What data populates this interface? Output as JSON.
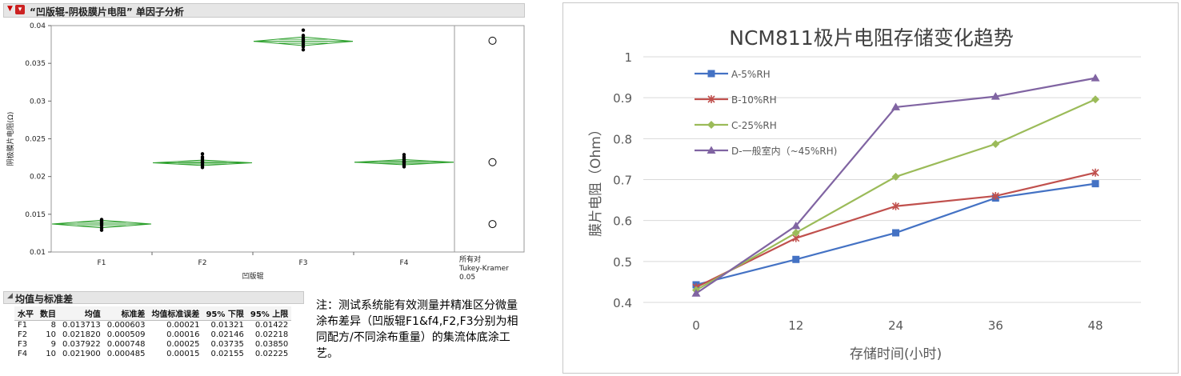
{
  "left_header": {
    "title": "“凹版辊-阴极膜片电阻” 单因子分析"
  },
  "chart_data": [
    {
      "type": "scatter",
      "subtype": "oneway-means-diamonds",
      "title": "“凹版辊-阴极膜片电阻” 单因子分析",
      "xlabel": "凹版辊",
      "ylabel": "阴极膜片电阻(Ω)",
      "ylim": [
        0.01,
        0.04
      ],
      "yticks": [
        "0.01",
        "0.015",
        "0.02",
        "0.025",
        "0.03",
        "0.035",
        "0.04"
      ],
      "categories": [
        "F1",
        "F2",
        "F3",
        "F4"
      ],
      "means": [
        0.013713,
        0.02182,
        0.037922,
        0.0219
      ],
      "ci_lower": [
        0.01321,
        0.02146,
        0.03735,
        0.02155
      ],
      "ci_upper": [
        0.01422,
        0.02218,
        0.0385,
        0.02225
      ],
      "points": [
        [
          0.0129,
          0.0132,
          0.0135,
          0.0137,
          0.0138,
          0.014,
          0.0141,
          0.0143
        ],
        [
          0.0212,
          0.0214,
          0.0216,
          0.0218,
          0.0219,
          0.022,
          0.0222,
          0.0224,
          0.0226,
          0.023
        ],
        [
          0.0368,
          0.0372,
          0.0375,
          0.0378,
          0.038,
          0.0382,
          0.0384,
          0.0387,
          0.0394
        ],
        [
          0.0213,
          0.0215,
          0.0216,
          0.0218,
          0.0219,
          0.022,
          0.0222,
          0.0224,
          0.0226,
          0.0229
        ]
      ],
      "comparison_label": "所有对\nTukey-Kramer\n0.05",
      "comparison_circle_means": [
        0.038,
        0.0219,
        0.0137
      ]
    },
    {
      "type": "line",
      "title": "NCM811极片电阻存储变化趋势",
      "xlabel": "存储时间(小时)",
      "ylabel": "膜片电阻（Ohm）",
      "x": [
        0,
        12,
        24,
        36,
        48
      ],
      "ylim": [
        0.4,
        1.0
      ],
      "yticks": [
        "0.4",
        "0.5",
        "0.6",
        "0.7",
        "0.8",
        "0.9",
        "1"
      ],
      "series": [
        {
          "name": "A-5%RH",
          "values": [
            0.443,
            0.505,
            0.57,
            0.655,
            0.69
          ],
          "color": "#4472c4",
          "marker": "square"
        },
        {
          "name": "B-10%RH",
          "values": [
            0.437,
            0.557,
            0.635,
            0.66,
            0.717
          ],
          "color": "#c0504d",
          "marker": "x"
        },
        {
          "name": "C-25%RH",
          "values": [
            0.43,
            0.57,
            0.707,
            0.787,
            0.896
          ],
          "color": "#9bbb59",
          "marker": "diamond"
        },
        {
          "name": "D-一般室内（~45%RH)",
          "values": [
            0.422,
            0.587,
            0.877,
            0.903,
            0.948
          ],
          "color": "#8064a2",
          "marker": "triangle"
        }
      ]
    }
  ],
  "stats_table": {
    "title": "均值与标准差",
    "columns": [
      "水平",
      "数目",
      "均值",
      "标准差",
      "均值标准误差",
      "95% 下限",
      "95% 上限"
    ],
    "rows": [
      [
        "F1",
        "8",
        "0.013713",
        "0.000603",
        "0.00021",
        "0.01321",
        "0.01422"
      ],
      [
        "F2",
        "10",
        "0.021820",
        "0.000509",
        "0.00016",
        "0.02146",
        "0.02218"
      ],
      [
        "F3",
        "9",
        "0.037922",
        "0.000748",
        "0.00025",
        "0.03735",
        "0.03850"
      ],
      [
        "F4",
        "10",
        "0.021900",
        "0.000485",
        "0.00015",
        "0.02155",
        "0.02225"
      ]
    ]
  },
  "note": "注：测试系统能有效测量并精准区分微量涂布差异（凹版辊F1&f4,F2,F3分别为相同配方/不同涂布重量）的集流体底涂工艺。"
}
